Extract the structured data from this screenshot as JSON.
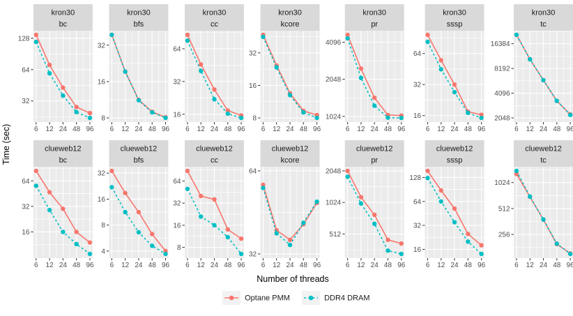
{
  "chart_data": {
    "type": "line",
    "title": "",
    "xlabel": "Number of threads",
    "ylabel": "Time (sec)",
    "x_categories": [
      "6",
      "12",
      "24",
      "48",
      "96"
    ],
    "scales": "log2 x and y, free y per facet",
    "grid": "on",
    "legend": {
      "position": "bottom",
      "entries": [
        {
          "name": "Optane PMM",
          "color": "#F8766D",
          "linetype": "solid"
        },
        {
          "name": "DDR4 DRAM",
          "color": "#00BFC4",
          "linetype": "dashed"
        }
      ]
    },
    "facet_rows": [
      "kron30",
      "clueweb12"
    ],
    "facet_cols": [
      "bc",
      "bfs",
      "cc",
      "kcore",
      "pr",
      "sssp",
      "tc"
    ],
    "facets": [
      {
        "dataset": "kron30",
        "algorithm": "bc",
        "yticks": [
          128,
          64,
          32
        ],
        "series": [
          {
            "name": "Optane PMM",
            "values": [
              138,
              71,
              43,
              28,
              24.5
            ]
          },
          {
            "name": "DDR4 DRAM",
            "values": [
              118,
              59,
              36,
              25,
              22
            ]
          }
        ]
      },
      {
        "dataset": "kron30",
        "algorithm": "bfs",
        "yticks": [
          32,
          16,
          8
        ],
        "series": [
          {
            "name": "Optane PMM",
            "values": [
              39,
              19.4,
              11.3,
              9,
              8.1
            ]
          },
          {
            "name": "DDR4 DRAM",
            "values": [
              39,
              19.3,
              11.2,
              8.9,
              8
            ]
          }
        ]
      },
      {
        "dataset": "kron30",
        "algorithm": "cc",
        "yticks": [
          64,
          32,
          16
        ],
        "series": [
          {
            "name": "Optane PMM",
            "values": [
              86,
              46,
              27,
              17.3,
              15.6
            ]
          },
          {
            "name": "DDR4 DRAM",
            "values": [
              76,
              40,
              22,
              16.2,
              14.8
            ]
          }
        ]
      },
      {
        "dataset": "kron30",
        "algorithm": "kcore",
        "yticks": [
          32,
          16,
          8
        ],
        "series": [
          {
            "name": "Optane PMM",
            "values": [
              47,
              24.5,
              13.5,
              9.3,
              8.5
            ]
          },
          {
            "name": "DDR4 DRAM",
            "values": [
              45,
              23.5,
              13,
              9,
              8
            ]
          }
        ]
      },
      {
        "dataset": "kron30",
        "algorithm": "pr",
        "yticks": [
          4096,
          2048,
          1024
        ],
        "series": [
          {
            "name": "Optane PMM",
            "values": [
              4700,
              2500,
              1450,
              1050,
              1040
            ]
          },
          {
            "name": "DDR4 DRAM",
            "values": [
              4400,
              2100,
              1250,
              1000,
              995
            ]
          }
        ]
      },
      {
        "dataset": "kron30",
        "algorithm": "sssp",
        "yticks": [
          64,
          32,
          16
        ],
        "series": [
          {
            "name": "Optane PMM",
            "values": [
              97,
              55,
              32,
              17.5,
              16.3
            ]
          },
          {
            "name": "DDR4 DRAM",
            "values": [
              83,
              45,
              27,
              17,
              15.2
            ]
          }
        ]
      },
      {
        "dataset": "kron30",
        "algorithm": "tc",
        "yticks": [
          16384,
          8192,
          4096,
          2048
        ],
        "series": [
          {
            "name": "Optane PMM",
            "values": [
              21000,
              10600,
              5900,
              3300,
              2260
            ]
          },
          {
            "name": "DDR4 DRAM",
            "values": [
              21000,
              10600,
              5900,
              3300,
              2230
            ]
          }
        ]
      },
      {
        "dataset": "clueweb12",
        "algorithm": "bc",
        "yticks": [
          64,
          32,
          16
        ],
        "series": [
          {
            "name": "Optane PMM",
            "values": [
              84,
              47,
              30,
              16,
              12
            ]
          },
          {
            "name": "DDR4 DRAM",
            "values": [
              56,
              29,
              16,
              11.5,
              8.8
            ]
          }
        ]
      },
      {
        "dataset": "clueweb12",
        "algorithm": "bfs",
        "yticks": [
          32,
          16,
          8,
          4
        ],
        "series": [
          {
            "name": "Optane PMM",
            "values": [
              34,
              18.8,
              11.3,
              6.3,
              4.0
            ]
          },
          {
            "name": "DDR4 DRAM",
            "values": [
              22,
              11.3,
              6.6,
              4.6,
              3.7
            ]
          }
        ]
      },
      {
        "dataset": "clueweb12",
        "algorithm": "cc",
        "yticks": [
          64,
          32,
          16,
          8
        ],
        "series": [
          {
            "name": "Optane PMM",
            "values": [
              88,
              40,
              36,
              14,
              10.5
            ]
          },
          {
            "name": "DDR4 DRAM",
            "values": [
              50,
              21,
              16,
              11,
              6.5
            ]
          }
        ]
      },
      {
        "dataset": "clueweb12",
        "algorithm": "kcore",
        "yticks": [
          64,
          32
        ],
        "series": [
          {
            "name": "Optane PMM",
            "values": [
              57,
              39,
              36,
              41,
              49
            ]
          },
          {
            "name": "DDR4 DRAM",
            "values": [
              55.5,
              38,
              34.5,
              41.5,
              49.5
            ]
          }
        ]
      },
      {
        "dataset": "clueweb12",
        "algorithm": "pr",
        "yticks": [
          2048,
          1024,
          512
        ],
        "series": [
          {
            "name": "Optane PMM",
            "values": [
              2050,
              1150,
              780,
              450,
              415
            ]
          },
          {
            "name": "DDR4 DRAM",
            "values": [
              1800,
              1000,
              640,
              355,
              330
            ]
          }
        ]
      },
      {
        "dataset": "clueweb12",
        "algorithm": "sssp",
        "yticks": [
          128,
          64,
          32,
          16
        ],
        "series": [
          {
            "name": "Optane PMM",
            "values": [
              155,
              88,
              52,
              25,
              18
            ]
          },
          {
            "name": "DDR4 DRAM",
            "values": [
              126,
              64,
              35,
              20,
              14
            ]
          }
        ]
      },
      {
        "dataset": "clueweb12",
        "algorithm": "tc",
        "yticks": [
          1024,
          512,
          256
        ],
        "series": [
          {
            "name": "Optane PMM",
            "values": [
              1290,
              700,
              380,
              198,
              154
            ]
          },
          {
            "name": "DDR4 DRAM",
            "values": [
              1400,
              705,
              382,
              200,
              152
            ]
          }
        ]
      }
    ],
    "style": {
      "panel_bg": "#EBEBEB",
      "strip_bg": "#D9D9D9",
      "grid_color": "#FFFFFF",
      "tick_label_color": "#4D4D4D",
      "strip_text_color": "#1A1A1A",
      "axis_title_color": "#000000",
      "legend_key_bg": "#F2F2F2",
      "tick_mark_color": "#333333"
    }
  }
}
